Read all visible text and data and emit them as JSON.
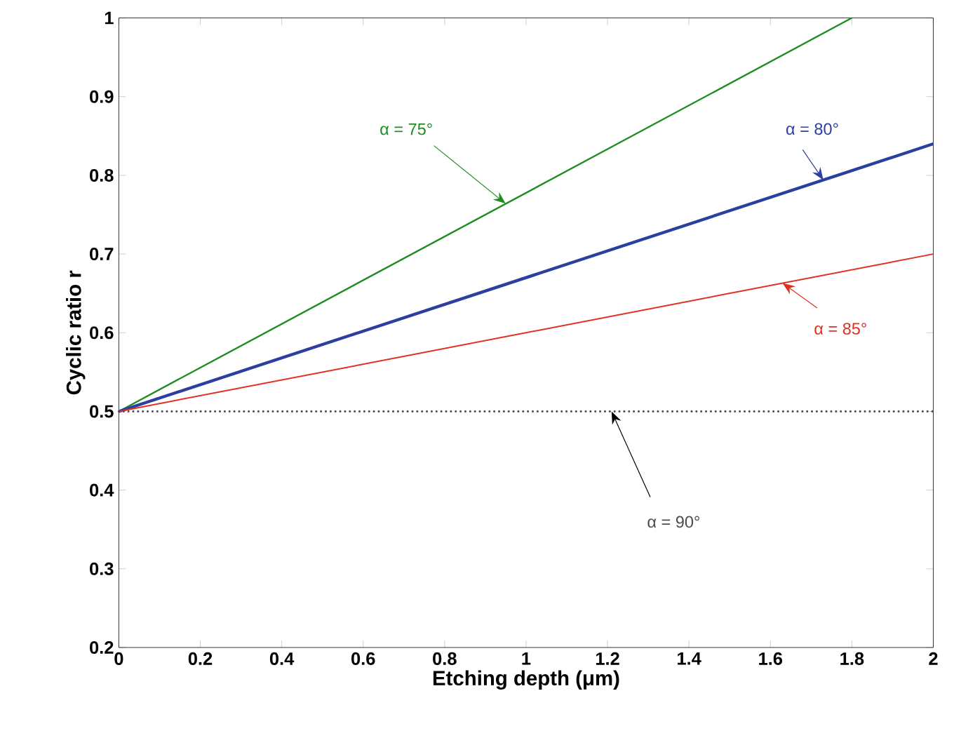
{
  "chart_data": {
    "type": "line",
    "xlabel": "Etching depth (μm)",
    "ylabel": "Cyclic ratio r",
    "xlim": [
      0,
      2
    ],
    "ylim": [
      0.2,
      1
    ],
    "xticks": [
      0,
      0.2,
      0.4,
      0.6,
      0.8,
      1,
      1.2,
      1.4,
      1.6,
      1.8,
      2
    ],
    "yticks": [
      0.2,
      0.3,
      0.4,
      0.5,
      0.6,
      0.7,
      0.8,
      0.9,
      1
    ],
    "grid": false,
    "marker": "none",
    "series": [
      {
        "color": "#1e8c1e",
        "x": [
          0,
          1.8
        ],
        "values": [
          0.5,
          1.0
        ],
        "line_style": "solid"
      },
      {
        "color": "#2b3fa0",
        "x": [
          0,
          2
        ],
        "values": [
          0.5,
          0.84
        ],
        "line_style": "solid"
      },
      {
        "color": "#e03020",
        "x": [
          0,
          2
        ],
        "values": [
          0.5,
          0.7
        ],
        "line_style": "solid"
      },
      {
        "color": "#555555",
        "x": [
          0,
          2
        ],
        "values": [
          0.5,
          0.5
        ],
        "line_style": "dotted"
      }
    ],
    "annotations": [
      {
        "text": "α = 75°",
        "x": 0.95,
        "y": 0.764
      },
      {
        "text": "α = 80°",
        "x": 1.73,
        "y": 0.794
      },
      {
        "text": "α = 85°",
        "x": 1.63,
        "y": 0.663
      },
      {
        "text": "α = 90°",
        "x": 1.21,
        "y": 0.5
      }
    ]
  }
}
